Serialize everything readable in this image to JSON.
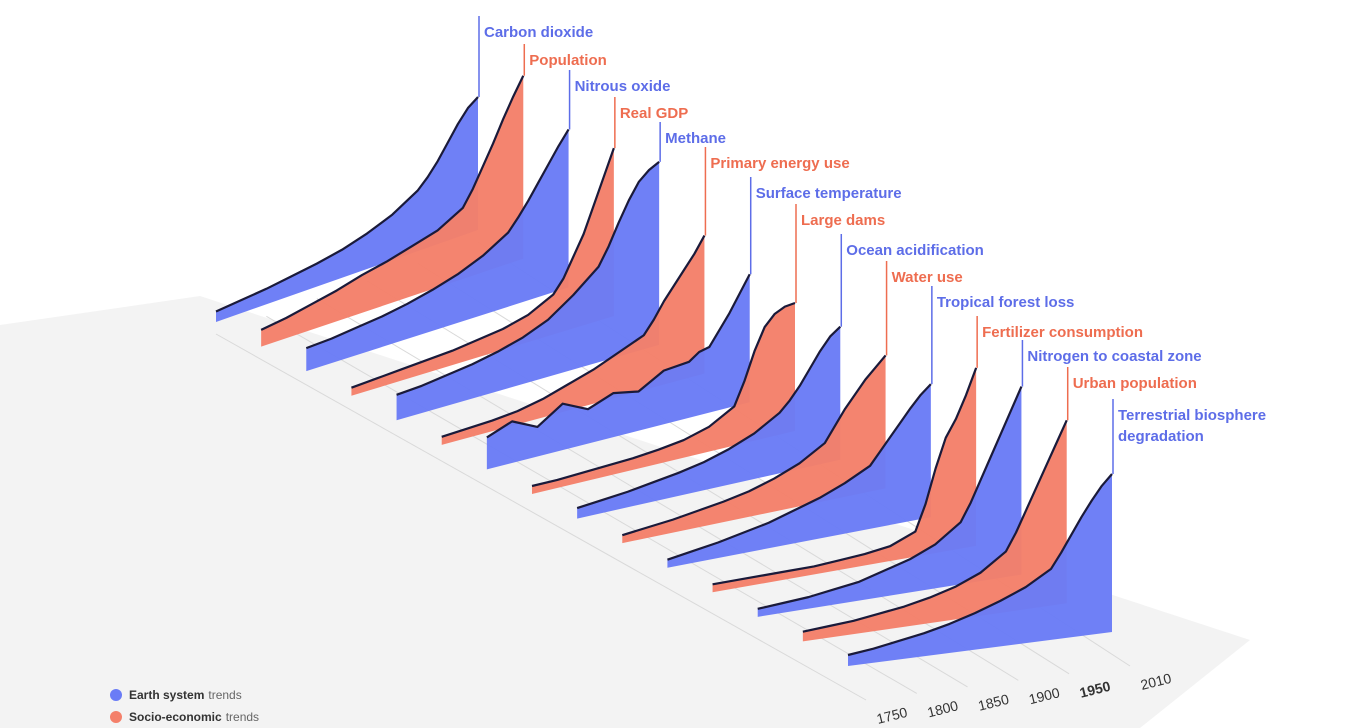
{
  "colors": {
    "earth": "#6a7cf6",
    "socio": "#f4806a",
    "earth_text": "#5d6de8",
    "socio_text": "#ee6d50",
    "floor": "#f2f2f2"
  },
  "legend": {
    "earth": {
      "strong": "Earth system",
      "rest": "trends"
    },
    "socio": {
      "strong": "Socio-economic",
      "rest": "trends"
    }
  },
  "chart_data": {
    "type": "area",
    "x_ticks": [
      "1750",
      "1800",
      "1850",
      "1900",
      "1950",
      "2010"
    ],
    "bold_tick": "1950",
    "x": [
      1750,
      1775,
      1800,
      1825,
      1850,
      1875,
      1900,
      1925,
      1950,
      1960,
      1970,
      1980,
      1990,
      2000,
      2010
    ],
    "series": [
      {
        "name": "Carbon dioxide",
        "group": "earth",
        "values": [
          0.02,
          0.04,
          0.06,
          0.09,
          0.12,
          0.16,
          0.22,
          0.3,
          0.42,
          0.5,
          0.6,
          0.72,
          0.84,
          0.94,
          1.0
        ]
      },
      {
        "name": "Population",
        "group": "socio",
        "values": [
          0.05,
          0.07,
          0.1,
          0.13,
          0.17,
          0.2,
          0.24,
          0.28,
          0.36,
          0.45,
          0.56,
          0.67,
          0.79,
          0.9,
          1.0
        ]
      },
      {
        "name": "Nitrous oxide",
        "group": "earth",
        "values": [
          0.1,
          0.11,
          0.13,
          0.15,
          0.18,
          0.22,
          0.27,
          0.34,
          0.44,
          0.52,
          0.61,
          0.71,
          0.81,
          0.91,
          1.0
        ]
      },
      {
        "name": "Real GDP",
        "group": "socio",
        "values": [
          0.0,
          0.01,
          0.02,
          0.03,
          0.04,
          0.06,
          0.08,
          0.12,
          0.2,
          0.28,
          0.4,
          0.52,
          0.68,
          0.84,
          1.0
        ]
      },
      {
        "name": "Methane",
        "group": "earth",
        "values": [
          0.1,
          0.11,
          0.13,
          0.15,
          0.18,
          0.22,
          0.28,
          0.38,
          0.5,
          0.6,
          0.72,
          0.83,
          0.92,
          0.97,
          1.0
        ]
      },
      {
        "name": "Primary energy use",
        "group": "socio",
        "values": [
          0.0,
          0.01,
          0.02,
          0.04,
          0.08,
          0.14,
          0.2,
          0.28,
          0.36,
          0.46,
          0.58,
          0.68,
          0.78,
          0.88,
          1.0
        ]
      },
      {
        "name": "Surface temperature",
        "group": "earth",
        "values": [
          0.2,
          0.28,
          0.18,
          0.32,
          0.22,
          0.3,
          0.26,
          0.38,
          0.4,
          0.46,
          0.48,
          0.6,
          0.72,
          0.86,
          1.0
        ]
      },
      {
        "name": "Large dams",
        "group": "socio",
        "values": [
          0.0,
          0.0,
          0.01,
          0.02,
          0.03,
          0.05,
          0.08,
          0.14,
          0.26,
          0.45,
          0.68,
          0.86,
          0.95,
          0.99,
          1.0
        ]
      },
      {
        "name": "Ocean acidification",
        "group": "earth",
        "values": [
          0.02,
          0.04,
          0.06,
          0.09,
          0.12,
          0.16,
          0.22,
          0.3,
          0.42,
          0.5,
          0.6,
          0.72,
          0.84,
          0.94,
          1.0
        ]
      },
      {
        "name": "Water use",
        "group": "socio",
        "values": [
          0.0,
          0.02,
          0.04,
          0.07,
          0.1,
          0.14,
          0.2,
          0.28,
          0.4,
          0.52,
          0.64,
          0.74,
          0.84,
          0.92,
          1.0
        ]
      },
      {
        "name": "Tropical forest loss",
        "group": "earth",
        "values": [
          0.0,
          0.03,
          0.06,
          0.1,
          0.14,
          0.2,
          0.26,
          0.34,
          0.44,
          0.54,
          0.64,
          0.74,
          0.84,
          0.93,
          1.0
        ]
      },
      {
        "name": "Fertilizer consumption",
        "group": "socio",
        "values": [
          0.0,
          0.0,
          0.0,
          0.0,
          0.0,
          0.01,
          0.02,
          0.04,
          0.1,
          0.25,
          0.45,
          0.62,
          0.72,
          0.85,
          1.0
        ]
      },
      {
        "name": "Nitrogen to coastal zone",
        "group": "earth",
        "values": [
          0.0,
          0.01,
          0.02,
          0.04,
          0.06,
          0.1,
          0.14,
          0.2,
          0.3,
          0.4,
          0.52,
          0.64,
          0.76,
          0.88,
          1.0
        ]
      },
      {
        "name": "Urban population",
        "group": "socio",
        "values": [
          0.01,
          0.02,
          0.03,
          0.05,
          0.07,
          0.1,
          0.14,
          0.2,
          0.3,
          0.4,
          0.52,
          0.64,
          0.76,
          0.88,
          1.0
        ]
      },
      {
        "name": "Terrestrial biosphere degradation",
        "group": "earth",
        "values": [
          0.02,
          0.04,
          0.07,
          0.1,
          0.14,
          0.19,
          0.25,
          0.32,
          0.42,
          0.52,
          0.63,
          0.74,
          0.84,
          0.93,
          1.0
        ]
      }
    ]
  }
}
